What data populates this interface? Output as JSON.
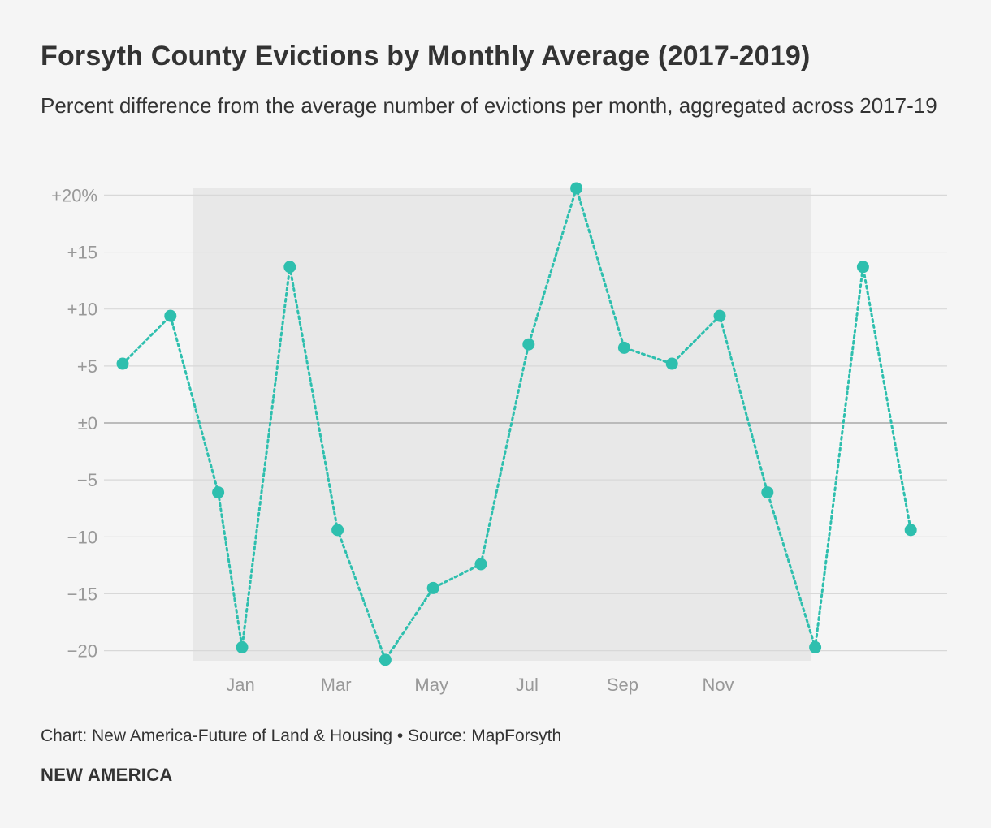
{
  "header": {
    "title": "Forsyth County Evictions by Monthly Average (2017-2019)",
    "subtitle": "Percent difference from the average number of evictions per month, aggregated across 2017-19"
  },
  "footer": {
    "credit": "Chart: New America-Future of Land & Housing • Source: MapForsyth",
    "brand": "NEW AMERICA"
  },
  "chart_data": {
    "type": "line",
    "line_style": "dotted",
    "colors": {
      "series": "#2ebfae",
      "highlight_band": "#e8e8e8",
      "grid": "#d8d8d8",
      "zero_line": "#aaaaaa"
    },
    "x_tick_labels": [
      "Jan",
      "Mar",
      "May",
      "Jul",
      "Sep",
      "Nov"
    ],
    "x_tick_positions": [
      3,
      5,
      7,
      9,
      11,
      13
    ],
    "highlight_range": [
      2.5,
      14.5
    ],
    "xlim": [
      0.5,
      17.5
    ],
    "ylim": [
      -20.8,
      20.6
    ],
    "y_ticks": [
      {
        "value": 20,
        "label": "+20%"
      },
      {
        "value": 15,
        "label": "+15"
      },
      {
        "value": 10,
        "label": "+10"
      },
      {
        "value": 5,
        "label": "+5"
      },
      {
        "value": 0,
        "label": "±0"
      },
      {
        "value": -5,
        "label": "−5"
      },
      {
        "value": -10,
        "label": "−10"
      },
      {
        "value": -15,
        "label": "−15"
      },
      {
        "value": -20,
        "label": "−20"
      }
    ],
    "series": [
      {
        "x": [
          0.5,
          1.5,
          2.5,
          3,
          4,
          5,
          6,
          7,
          8,
          9,
          10,
          11,
          12,
          13,
          14,
          15,
          16,
          17
        ],
        "values": [
          5.2,
          9.4,
          -6.1,
          -19.7,
          13.7,
          -9.4,
          -20.8,
          -14.5,
          -12.4,
          6.9,
          20.6,
          6.6,
          5.2,
          9.4,
          -6.1,
          -19.7,
          13.7,
          -9.4
        ]
      }
    ]
  }
}
